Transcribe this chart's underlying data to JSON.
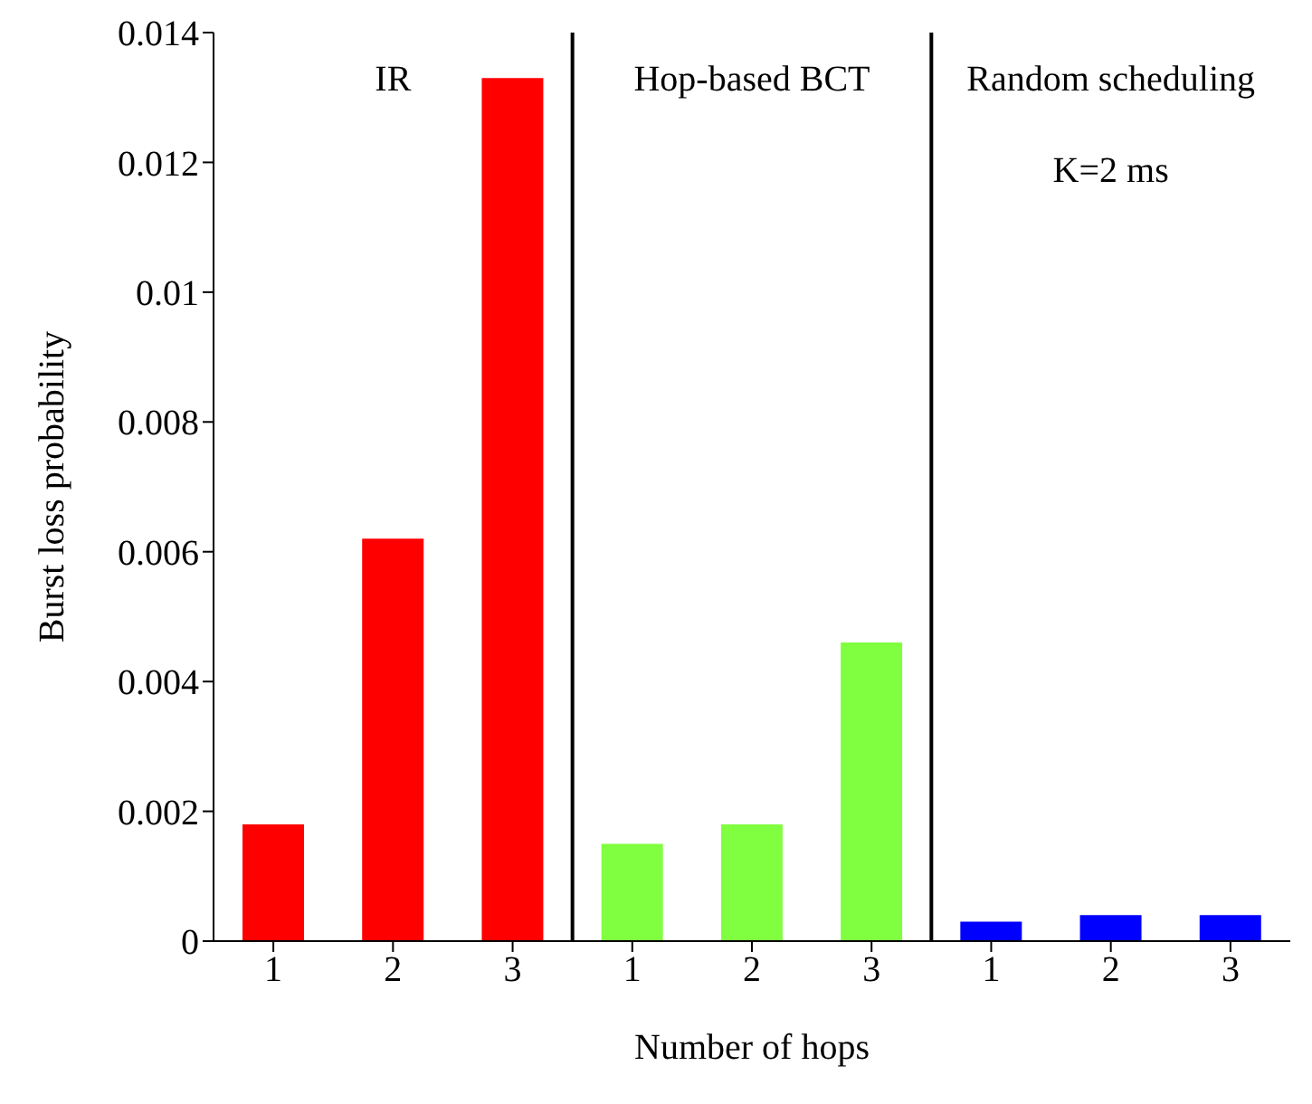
{
  "chart_data": {
    "type": "bar",
    "xlabel": "Number of hops",
    "ylabel": "Burst loss probability",
    "categories": [
      "1",
      "2",
      "3",
      "1",
      "2",
      "3",
      "1",
      "2",
      "3"
    ],
    "values": [
      0.0018,
      0.0062,
      0.0133,
      0.0015,
      0.0018,
      0.0046,
      0.0003,
      0.0004,
      0.0004
    ],
    "colors": [
      "#ff0000",
      "#ff0000",
      "#ff0000",
      "#80ff40",
      "#80ff40",
      "#80ff40",
      "#0000ff",
      "#0000ff",
      "#0000ff"
    ],
    "ylim": [
      0,
      0.014
    ],
    "yticks": [
      0,
      0.002,
      0.004,
      0.006,
      0.008,
      0.01,
      0.012,
      0.014
    ],
    "grid": false,
    "annotations": [
      "IR",
      "Hop-based BCT",
      "Random scheduling",
      "K=2 ms"
    ]
  }
}
